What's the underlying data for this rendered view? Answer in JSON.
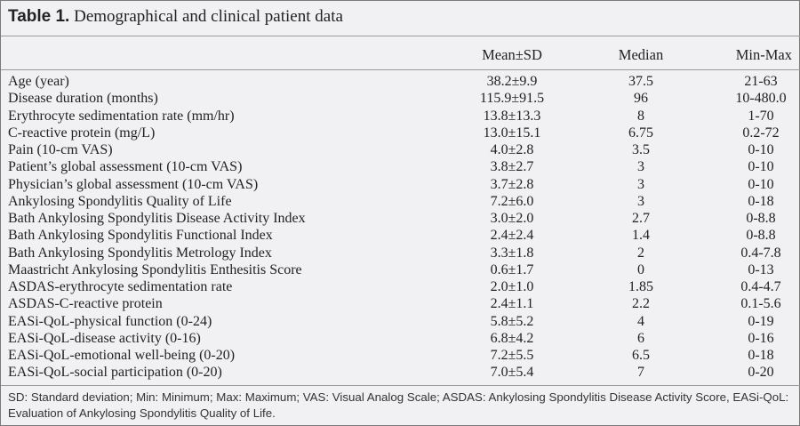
{
  "table": {
    "title_bold": "Table 1.",
    "title_text": "Demographical and clinical patient data",
    "columns": [
      "Mean±SD",
      "Median",
      "Min-Max"
    ],
    "rows": [
      [
        "Age (year)",
        "38.2±9.9",
        "37.5",
        "21-63"
      ],
      [
        "Disease duration (months)",
        "115.9±91.5",
        "96",
        "10-480.0"
      ],
      [
        "Erythrocyte sedimentation rate (mm/hr)",
        "13.8±13.3",
        "8",
        "1-70"
      ],
      [
        "C-reactive protein (mg/L)",
        "13.0±15.1",
        "6.75",
        "0.2-72"
      ],
      [
        "Pain (10-cm VAS)",
        "4.0±2.8",
        "3.5",
        "0-10"
      ],
      [
        "Patient’s global assessment (10-cm VAS)",
        "3.8±2.7",
        "3",
        "0-10"
      ],
      [
        "Physician’s global assessment (10-cm VAS)",
        "3.7±2.8",
        "3",
        "0-10"
      ],
      [
        "Ankylosing Spondylitis Quality of Life",
        "7.2±6.0",
        "3",
        "0-18"
      ],
      [
        "Bath Ankylosing Spondylitis Disease Activity Index",
        "3.0±2.0",
        "2.7",
        "0-8.8"
      ],
      [
        "Bath Ankylosing Spondylitis Functional Index",
        "2.4±2.4",
        "1.4",
        "0-8.8"
      ],
      [
        "Bath Ankylosing Spondylitis Metrology Index",
        "3.3±1.8",
        "2",
        "0.4-7.8"
      ],
      [
        "Maastricht Ankylosing Spondylitis Enthesitis Score",
        "0.6±1.7",
        "0",
        "0-13"
      ],
      [
        "ASDAS-erythrocyte sedimentation rate",
        "2.0±1.0",
        "1.85",
        "0.4-4.7"
      ],
      [
        "ASDAS-C-reactive protein",
        "2.4±1.1",
        "2.2",
        "0.1-5.6"
      ],
      [
        "EASi-QoL-physical function (0-24)",
        "5.8±5.2",
        "4",
        "0-19"
      ],
      [
        "EASi-QoL-disease activity (0-16)",
        "6.8±4.2",
        "6",
        "0-16"
      ],
      [
        "EASi-QoL-emotional well-being (0-20)",
        "7.2±5.5",
        "6.5",
        "0-18"
      ],
      [
        "EASi-QoL-social participation (0-20)",
        "7.0±5.4",
        "7",
        "0-20"
      ]
    ],
    "footnote": "SD: Standard deviation; Min: Minimum; Max: Maximum; VAS: Visual Analog Scale; ASDAS: Ankylosing Spondylitis Disease Activity Score, EASi-QoL: Evaluation of Ankylosing Spondylitis Quality of Life."
  }
}
